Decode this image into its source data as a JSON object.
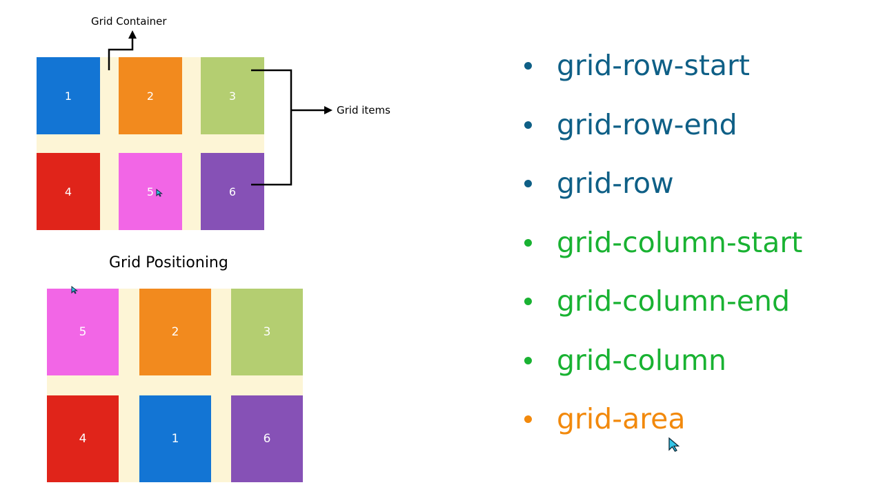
{
  "colors": {
    "blue": "#1375d4",
    "orange": "#f28a1e",
    "green": "#b4ce71",
    "red": "#e0241a",
    "pink": "#f266e6",
    "purple": "#8651b6",
    "container_bg": "#fdf5d6",
    "row_prop": "#0e5f86",
    "column_prop": "#19b232",
    "area_prop": "#f2890c"
  },
  "top_diagram": {
    "container_label": "Grid Container",
    "items_label": "Grid items",
    "cells": [
      "1",
      "2",
      "3",
      "4",
      "5",
      "6"
    ]
  },
  "bottom_diagram": {
    "title": "Grid Positioning",
    "cells": [
      "5",
      "2",
      "3",
      "4",
      "1",
      "6"
    ]
  },
  "properties": [
    {
      "label": "grid-row-start",
      "color_key": "row_prop"
    },
    {
      "label": "grid-row-end",
      "color_key": "row_prop"
    },
    {
      "label": "grid-row",
      "color_key": "row_prop"
    },
    {
      "label": "grid-column-start",
      "color_key": "column_prop"
    },
    {
      "label": "grid-column-end",
      "color_key": "column_prop"
    },
    {
      "label": "grid-column",
      "color_key": "column_prop"
    },
    {
      "label": "grid-area",
      "color_key": "area_prop"
    }
  ],
  "icons": [
    "arrow-up-icon",
    "arrow-right-icon",
    "cursor-icon"
  ]
}
